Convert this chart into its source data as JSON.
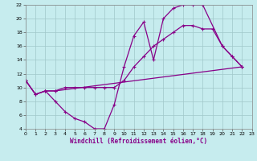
{
  "xlabel": "Windchill (Refroidissement éolien,°C)",
  "bg_color": "#c6ecee",
  "grid_color": "#a0c8ca",
  "line_color": "#880088",
  "xlim": [
    0,
    23
  ],
  "ylim": [
    4,
    22
  ],
  "xticks": [
    0,
    1,
    2,
    3,
    4,
    5,
    6,
    7,
    8,
    9,
    10,
    11,
    12,
    13,
    14,
    15,
    16,
    17,
    18,
    19,
    20,
    21,
    22,
    23
  ],
  "yticks": [
    4,
    6,
    8,
    10,
    12,
    14,
    16,
    18,
    20,
    22
  ],
  "line1_x": [
    0,
    1,
    2,
    3,
    4,
    5,
    6,
    7,
    8,
    9,
    10,
    11,
    12,
    13,
    14,
    15,
    16,
    17,
    18,
    20,
    21,
    22
  ],
  "line1_y": [
    11,
    9,
    9.5,
    8,
    6.5,
    5.5,
    5,
    4,
    4,
    7.5,
    13,
    17.5,
    19.5,
    14,
    20,
    21.5,
    22,
    22,
    22,
    16,
    14.5,
    13
  ],
  "line2_x": [
    0,
    1,
    2,
    3,
    4,
    5,
    6,
    7,
    8,
    9,
    10,
    11,
    12,
    13,
    14,
    15,
    16,
    17,
    18,
    19,
    20,
    21,
    22
  ],
  "line2_y": [
    11,
    9,
    9.5,
    9.5,
    10,
    10,
    10,
    10,
    10,
    10,
    11,
    13,
    14.5,
    16,
    17,
    18,
    19,
    19,
    18.5,
    18.5,
    16,
    14.5,
    13
  ],
  "line3_x": [
    0,
    1,
    2,
    3,
    22
  ],
  "line3_y": [
    11,
    9,
    9.5,
    9.5,
    13
  ]
}
